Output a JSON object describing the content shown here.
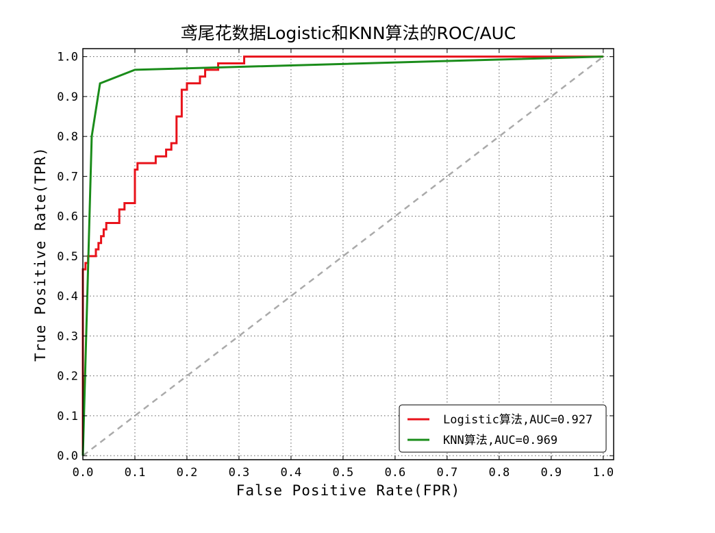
{
  "chart_data": {
    "type": "line",
    "title": "鸢尾花数据Logistic和KNN算法的ROC/AUC",
    "xlabel": "False Positive Rate(FPR)",
    "ylabel": "True Positive Rate(TPR)",
    "xlim": [
      0,
      1.02
    ],
    "ylim": [
      -0.01,
      1.02
    ],
    "xticks": [
      0.0,
      0.1,
      0.2,
      0.3,
      0.4,
      0.5,
      0.6,
      0.7,
      0.8,
      0.9,
      1.0
    ],
    "yticks": [
      0.0,
      0.1,
      0.2,
      0.3,
      0.4,
      0.5,
      0.6,
      0.7,
      0.8,
      0.9,
      1.0
    ],
    "xtick_labels": [
      "0.0",
      "0.1",
      "0.2",
      "0.3",
      "0.4",
      "0.5",
      "0.6",
      "0.7",
      "0.8",
      "0.9",
      "1.0"
    ],
    "ytick_labels": [
      "0.0",
      "0.1",
      "0.2",
      "0.3",
      "0.4",
      "0.5",
      "0.6",
      "0.7",
      "0.8",
      "0.9",
      "1.0"
    ],
    "grid": true,
    "legend_position": "lower-right",
    "series": [
      {
        "name": "Logistic算法,AUC=0.927",
        "color": "#e8121a",
        "style": "solid",
        "x": [
          0.0,
          0.0,
          0.005,
          0.005,
          0.01,
          0.01,
          0.025,
          0.025,
          0.03,
          0.03,
          0.035,
          0.035,
          0.04,
          0.04,
          0.045,
          0.045,
          0.07,
          0.07,
          0.08,
          0.08,
          0.1,
          0.1,
          0.105,
          0.105,
          0.14,
          0.14,
          0.16,
          0.16,
          0.17,
          0.17,
          0.18,
          0.18,
          0.19,
          0.19,
          0.2,
          0.2,
          0.225,
          0.225,
          0.235,
          0.235,
          0.26,
          0.26,
          0.31,
          0.31,
          1.0
        ],
        "y": [
          0.0,
          0.467,
          0.467,
          0.483,
          0.483,
          0.5,
          0.5,
          0.517,
          0.517,
          0.533,
          0.533,
          0.55,
          0.55,
          0.567,
          0.567,
          0.583,
          0.583,
          0.617,
          0.617,
          0.633,
          0.633,
          0.717,
          0.717,
          0.733,
          0.733,
          0.75,
          0.75,
          0.767,
          0.767,
          0.783,
          0.783,
          0.85,
          0.85,
          0.917,
          0.917,
          0.933,
          0.933,
          0.95,
          0.95,
          0.967,
          0.967,
          0.983,
          0.983,
          1.0,
          1.0
        ]
      },
      {
        "name": "KNN算法,AUC=0.969",
        "color": "#1a8c1a",
        "style": "solid",
        "x": [
          0.0,
          0.017,
          0.033,
          0.1,
          1.0
        ],
        "y": [
          0.0,
          0.8,
          0.933,
          0.967,
          1.0
        ]
      },
      {
        "name": "",
        "color": "#aaaaaa",
        "style": "dashed",
        "x": [
          0.0,
          1.0
        ],
        "y": [
          0.0,
          1.0
        ]
      }
    ]
  }
}
